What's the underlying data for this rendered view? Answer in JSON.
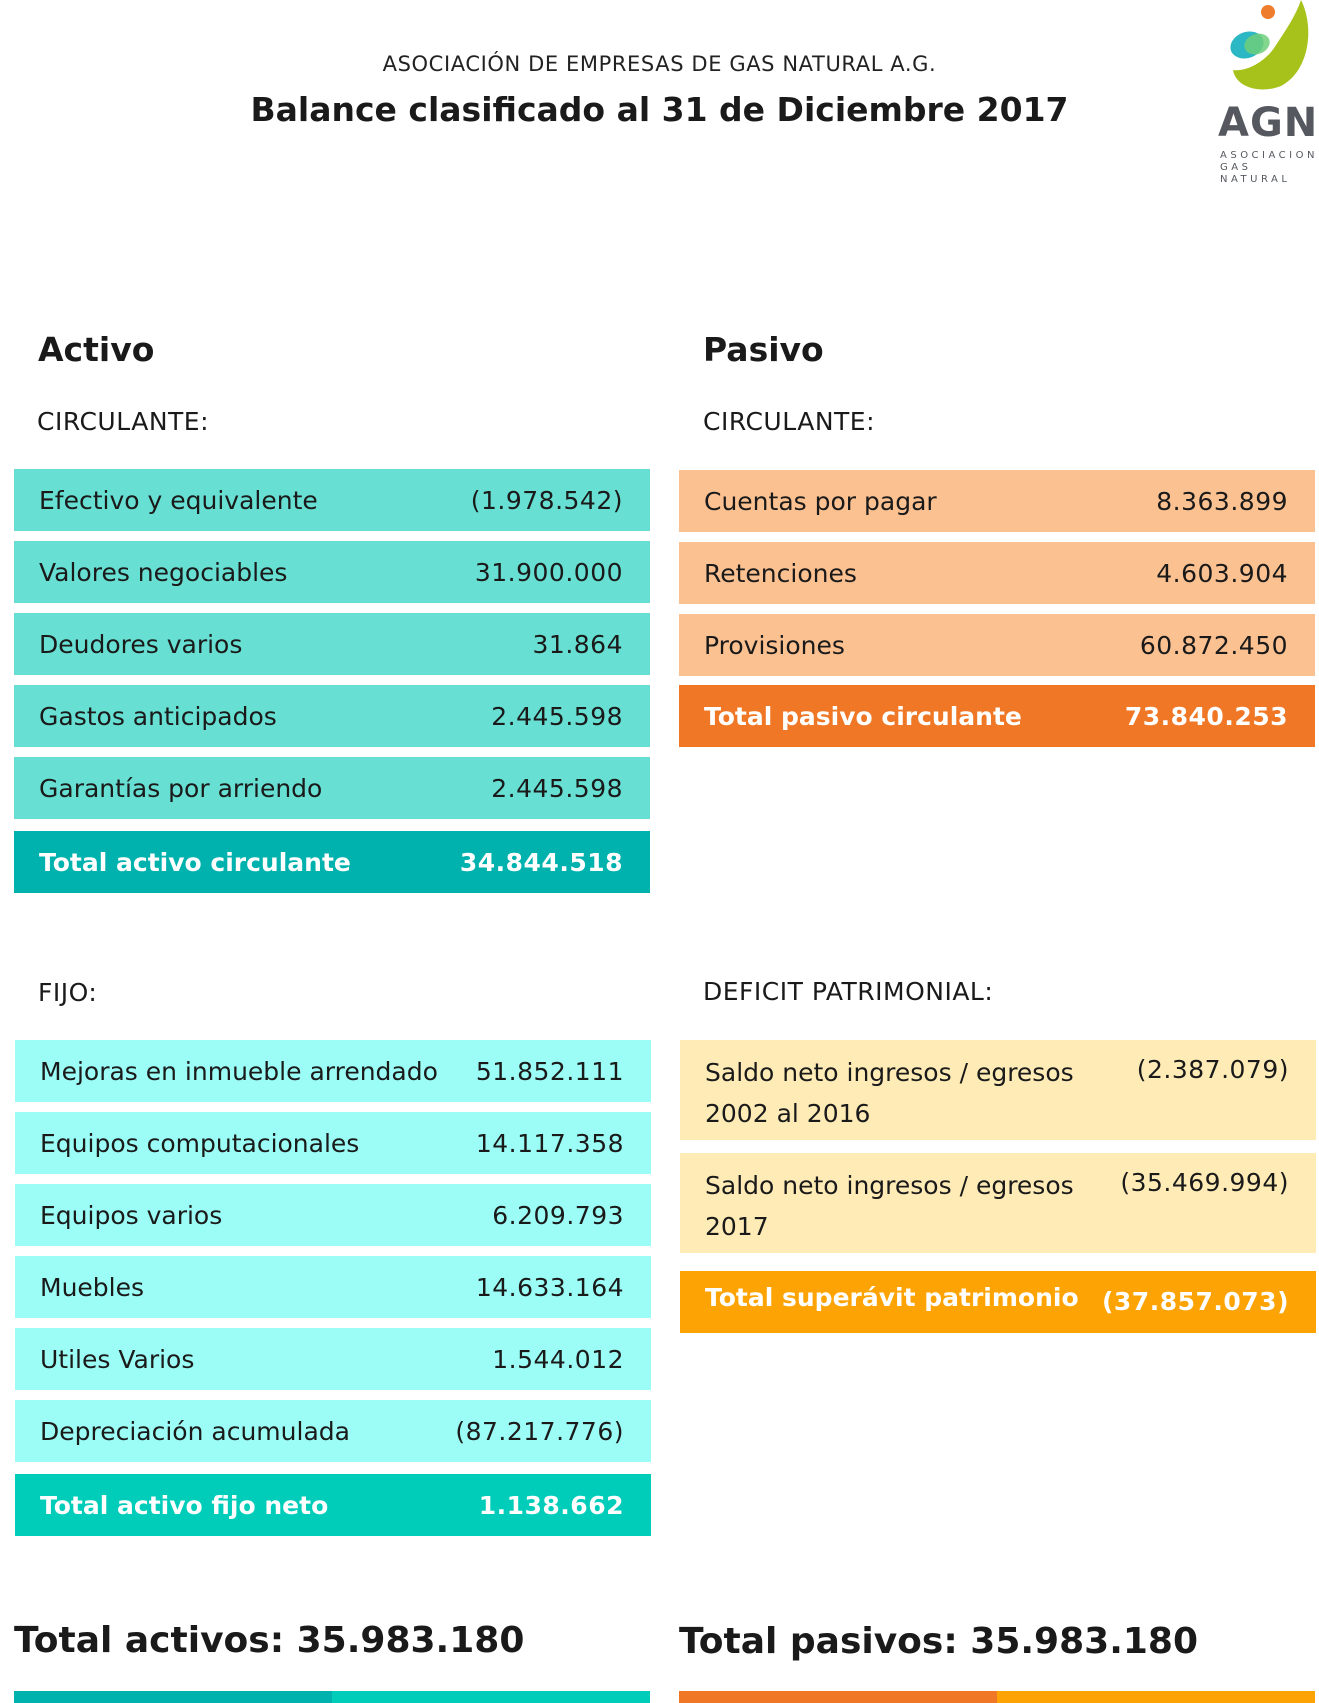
{
  "header": {
    "organization": "ASOCIACIÓN DE EMPRESAS DE GAS NATURAL A.G.",
    "title": "Balance clasificado al 31 de Diciembre 2017"
  },
  "logo": {
    "acronym": "AGN",
    "subtitle_line1": "ASOCIACION",
    "subtitle_line2": "GAS NATURAL",
    "colors": {
      "green": "#a7c21b",
      "blue": "#2bb7c4",
      "orange": "#ee7d2e",
      "gray": "#55595f"
    }
  },
  "activo": {
    "heading": "Activo",
    "circulante": {
      "label": "CIRCULANTE:",
      "items": [
        {
          "label": "Efectivo y equivalente",
          "value": "(1.978.542)"
        },
        {
          "label": "Valores negociables",
          "value": "31.900.000"
        },
        {
          "label": "Deudores varios",
          "value": "31.864"
        },
        {
          "label": "Gastos anticipados",
          "value": "2.445.598"
        },
        {
          "label": "Garantías por arriendo",
          "value": "2.445.598"
        }
      ],
      "total": {
        "label": "Total activo circulante",
        "value": "34.844.518"
      }
    },
    "fijo": {
      "label": "FIJO:",
      "items": [
        {
          "label": "Mejoras en inmueble arrendado",
          "value": "51.852.111"
        },
        {
          "label": "Equipos computacionales",
          "value": "14.117.358"
        },
        {
          "label": "Equipos varios",
          "value": "6.209.793"
        },
        {
          "label": "Muebles",
          "value": "14.633.164"
        },
        {
          "label": "Utiles Varios",
          "value": "1.544.012"
        },
        {
          "label": "Depreciación acumulada",
          "value": "(87.217.776)"
        }
      ],
      "total": {
        "label": "Total activo fijo neto",
        "value": "1.138.662"
      }
    },
    "grand_total": "Total activos: 35.983.180"
  },
  "pasivo": {
    "heading": "Pasivo",
    "circulante": {
      "label": "CIRCULANTE:",
      "items": [
        {
          "label": "Cuentas por pagar",
          "value": "8.363.899"
        },
        {
          "label": "Retenciones",
          "value": "4.603.904"
        },
        {
          "label": "Provisiones",
          "value": "60.872.450"
        }
      ],
      "total": {
        "label": "Total pasivo circulante",
        "value": "73.840.253"
      }
    },
    "deficit": {
      "label": "DEFICIT PATRIMONIAL:",
      "items": [
        {
          "label": "Saldo neto ingresos / egresos 2002 al 2016",
          "value": "(2.387.079)"
        },
        {
          "label": "Saldo neto ingresos / egresos 2017",
          "value": "(35.469.994)"
        }
      ],
      "total": {
        "label": "Total superávit patrimonio",
        "value": "(37.857.073)"
      }
    },
    "grand_total": "Total pasivos: 35.983.180"
  }
}
